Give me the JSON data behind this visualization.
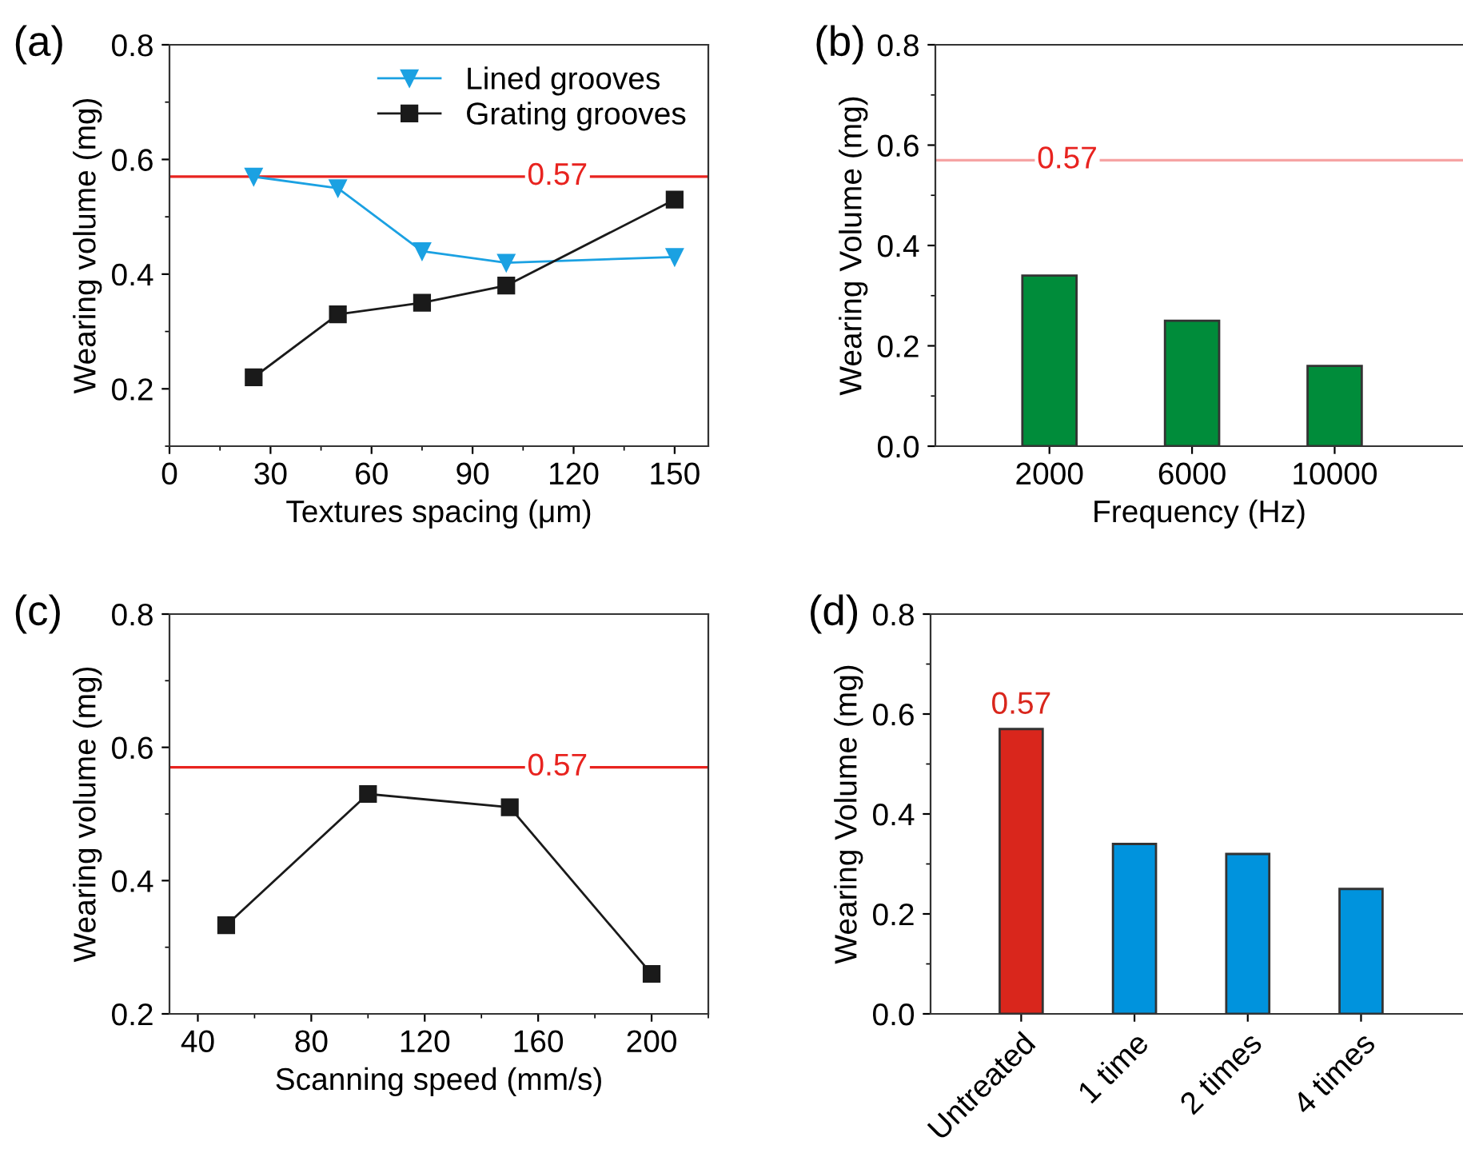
{
  "chart_data": [
    {
      "type": "line",
      "title": "(a)",
      "xlabel": "Textures spacing (μm)",
      "ylabel": "Wearing volume (mg)",
      "xlim": [
        0,
        160
      ],
      "xticks": [
        0,
        30,
        60,
        90,
        120,
        150
      ],
      "ylim": [
        0.1,
        0.8
      ],
      "yticks": [
        {
          "value": 0.2,
          "label": "0.2"
        },
        {
          "value": 0.4,
          "label": "0.4"
        },
        {
          "value": 0.6,
          "label": "0.6"
        },
        {
          "value": 0.8,
          "label": "0.8"
        }
      ],
      "legend": "top right",
      "grid": false,
      "series": [
        {
          "name": "Lined grooves",
          "color": "#1ba1e2",
          "marker": "triangle",
          "x": [
            25,
            50,
            75,
            100,
            150
          ],
          "values": [
            0.57,
            0.55,
            0.44,
            0.42,
            0.43
          ]
        },
        {
          "name": "Grating grooves",
          "color": "#1a1a1a",
          "marker": "square",
          "x": [
            25,
            50,
            75,
            100,
            150
          ],
          "values": [
            0.22,
            0.33,
            0.35,
            0.38,
            0.53
          ]
        }
      ],
      "ref_lines": [
        {
          "axis": "y",
          "value": 0.57,
          "label": "0.57",
          "color": "#e8231f"
        }
      ]
    },
    {
      "type": "bar",
      "title": "(b)",
      "xlabel": "Frequency (Hz)",
      "ylabel": "Wearing Volume (mg)",
      "categories": [
        "2000",
        "6000",
        "10000"
      ],
      "values": [
        0.34,
        0.25,
        0.16
      ],
      "color": "#008c3a",
      "ylim": [
        0,
        0.8
      ],
      "yticks": [
        {
          "value": 0,
          "label": "0.0"
        },
        {
          "value": 0.2,
          "label": "0.2"
        },
        {
          "value": 0.4,
          "label": "0.4"
        },
        {
          "value": 0.6,
          "label": "0.6"
        },
        {
          "value": 0.8,
          "label": "0.8"
        }
      ],
      "grid": false,
      "ref_lines": [
        {
          "axis": "y",
          "value": 0.57,
          "label": "0.57",
          "color": "#f6a3a3"
        }
      ]
    },
    {
      "type": "line",
      "title": "(c)",
      "xlabel": "Scanning speed (mm/s)",
      "ylabel": "Wearing volume (mg)",
      "xlim": [
        30,
        220
      ],
      "xticks": [
        40,
        80,
        120,
        160,
        200
      ],
      "ylim": [
        0.2,
        0.8
      ],
      "yticks": [
        {
          "value": 0.2,
          "label": "0.2"
        },
        {
          "value": 0.4,
          "label": "0.4"
        },
        {
          "value": 0.6,
          "label": "0.6"
        },
        {
          "value": 0.8,
          "label": "0.8"
        }
      ],
      "grid": false,
      "series": [
        {
          "color": "#1a1a1a",
          "marker": "square",
          "x": [
            50,
            100,
            150,
            200
          ],
          "values": [
            0.333,
            0.53,
            0.51,
            0.26
          ]
        }
      ],
      "ref_lines": [
        {
          "axis": "y",
          "value": 0.57,
          "label": "0.57",
          "color": "#e8231f"
        }
      ]
    },
    {
      "type": "bar",
      "title": "(d)",
      "ylabel": "Wearing Volume (mg)",
      "categories": [
        "Untreated",
        "1 time",
        "2 times",
        "4 times"
      ],
      "values": [
        0.57,
        0.34,
        0.32,
        0.25
      ],
      "colors": [
        "#d9261c",
        "#0093dd",
        "#0093dd",
        "#0093dd"
      ],
      "value_labels": [
        "0.57",
        null,
        null,
        null
      ],
      "ylim": [
        0,
        0.8
      ],
      "yticks": [
        {
          "value": 0,
          "label": "0.0"
        },
        {
          "value": 0.2,
          "label": "0.2"
        },
        {
          "value": 0.4,
          "label": "0.4"
        },
        {
          "value": 0.6,
          "label": "0.6"
        },
        {
          "value": 0.8,
          "label": "0.8"
        }
      ],
      "grid": false
    }
  ]
}
